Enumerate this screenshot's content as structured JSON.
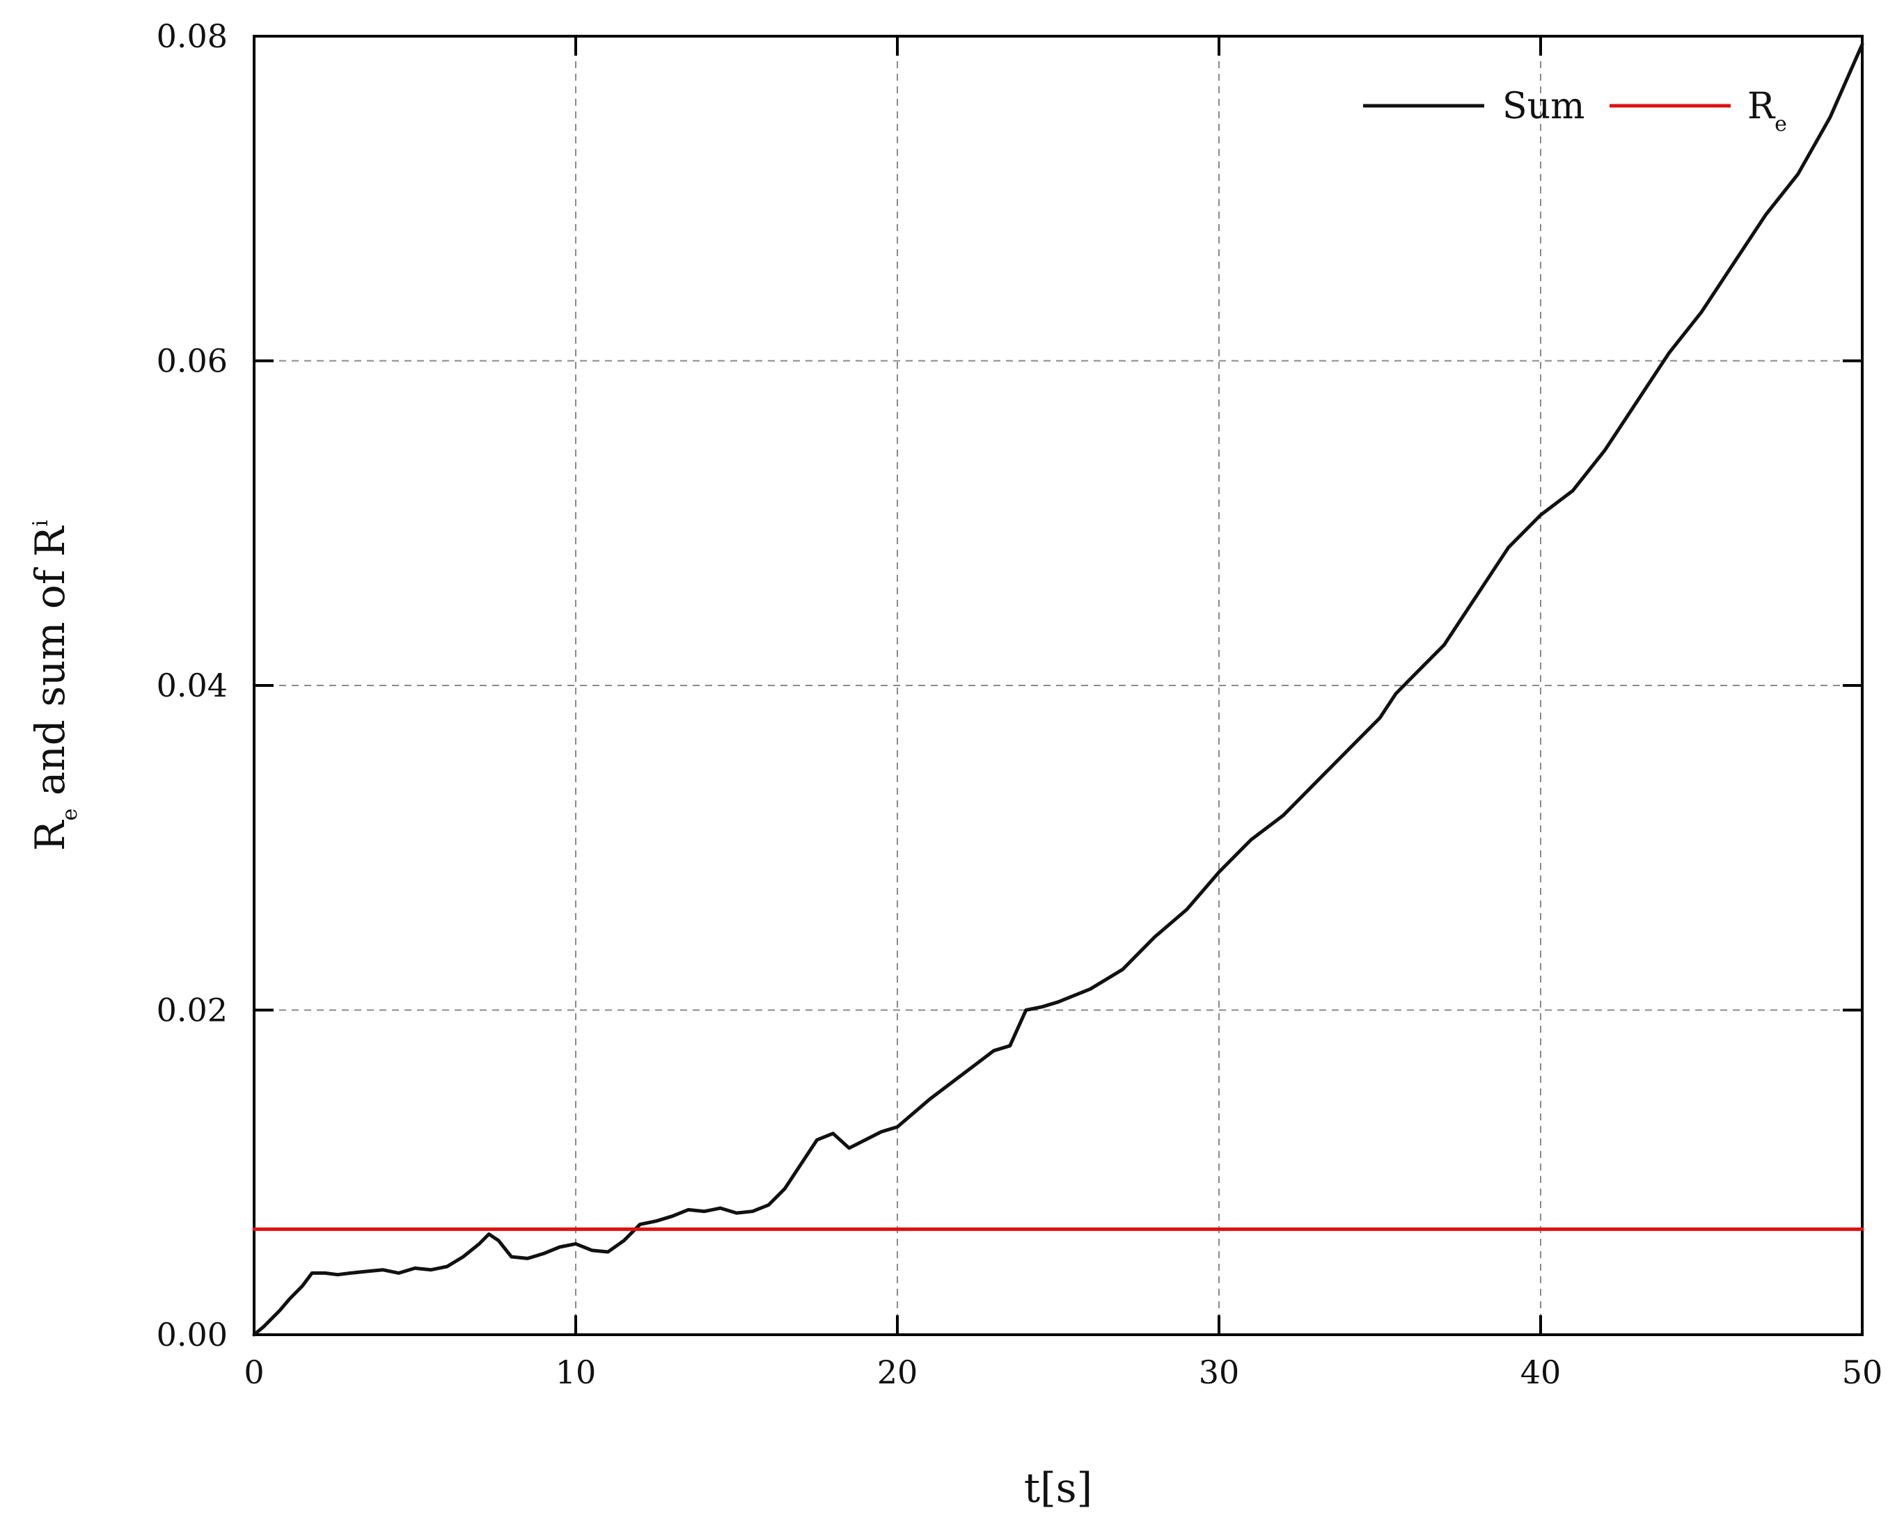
{
  "chart_data": {
    "type": "line",
    "xlabel": "t[s]",
    "ylabel": {
      "parts": [
        "R",
        "e",
        " and sum of R",
        "i"
      ]
    },
    "xlim": [
      0,
      50
    ],
    "ylim": [
      0,
      0.08
    ],
    "x_ticks": [
      0,
      10,
      20,
      30,
      40,
      50
    ],
    "x_tick_labels": [
      "0",
      "10",
      "20",
      "30",
      "40",
      "50"
    ],
    "y_ticks": [
      0,
      0.02,
      0.04,
      0.06,
      0.08
    ],
    "y_tick_labels": [
      "0.00",
      "0.02",
      "0.04",
      "0.06",
      "0.08"
    ],
    "grid": true,
    "legend_position": "top-right",
    "series": [
      {
        "name": "Sum",
        "legend_label": [
          "Sum"
        ],
        "color": "#111111",
        "x": [
          0,
          0.3,
          0.8,
          1.1,
          1.5,
          1.8,
          2.2,
          2.6,
          3.0,
          3.5,
          4.0,
          4.5,
          5.0,
          5.5,
          6.0,
          6.5,
          7.0,
          7.3,
          7.6,
          8.0,
          8.5,
          9.0,
          9.5,
          10.0,
          10.5,
          11.0,
          11.5,
          12.0,
          12.5,
          13.0,
          13.5,
          14.0,
          14.5,
          15.0,
          15.5,
          16.0,
          16.5,
          17.0,
          17.5,
          18.0,
          18.5,
          19.0,
          19.5,
          20.0,
          21.0,
          22.0,
          23.0,
          23.5,
          24.0,
          24.5,
          25.0,
          26.0,
          27.0,
          28.0,
          29.0,
          30.0,
          31.0,
          32.0,
          33.0,
          34.0,
          35.0,
          35.5,
          36.0,
          37.0,
          38.0,
          39.0,
          40.0,
          41.0,
          42.0,
          43.0,
          44.0,
          45.0,
          46.0,
          47.0,
          48.0,
          49.0,
          50.0
        ],
        "values": [
          0.0,
          0.0005,
          0.0015,
          0.0022,
          0.003,
          0.0038,
          0.0038,
          0.0037,
          0.0038,
          0.0039,
          0.004,
          0.0038,
          0.0041,
          0.004,
          0.0042,
          0.0048,
          0.0056,
          0.0062,
          0.0058,
          0.0048,
          0.0047,
          0.005,
          0.0054,
          0.0056,
          0.0052,
          0.0051,
          0.0058,
          0.0068,
          0.007,
          0.0073,
          0.0077,
          0.0076,
          0.0078,
          0.0075,
          0.0076,
          0.008,
          0.009,
          0.0105,
          0.012,
          0.0124,
          0.0115,
          0.012,
          0.0125,
          0.0128,
          0.0145,
          0.016,
          0.0175,
          0.0178,
          0.02,
          0.0202,
          0.0205,
          0.0213,
          0.0225,
          0.0245,
          0.0262,
          0.0285,
          0.0305,
          0.032,
          0.034,
          0.036,
          0.038,
          0.0395,
          0.0405,
          0.0425,
          0.0455,
          0.0485,
          0.0505,
          0.052,
          0.0545,
          0.0575,
          0.0605,
          0.063,
          0.066,
          0.069,
          0.0715,
          0.075,
          0.0795
        ]
      },
      {
        "name": "R_e",
        "legend_label": [
          "R",
          "e"
        ],
        "color": "#e01010",
        "x": [
          0,
          50
        ],
        "values": [
          0.0065,
          0.0065
        ]
      }
    ]
  }
}
